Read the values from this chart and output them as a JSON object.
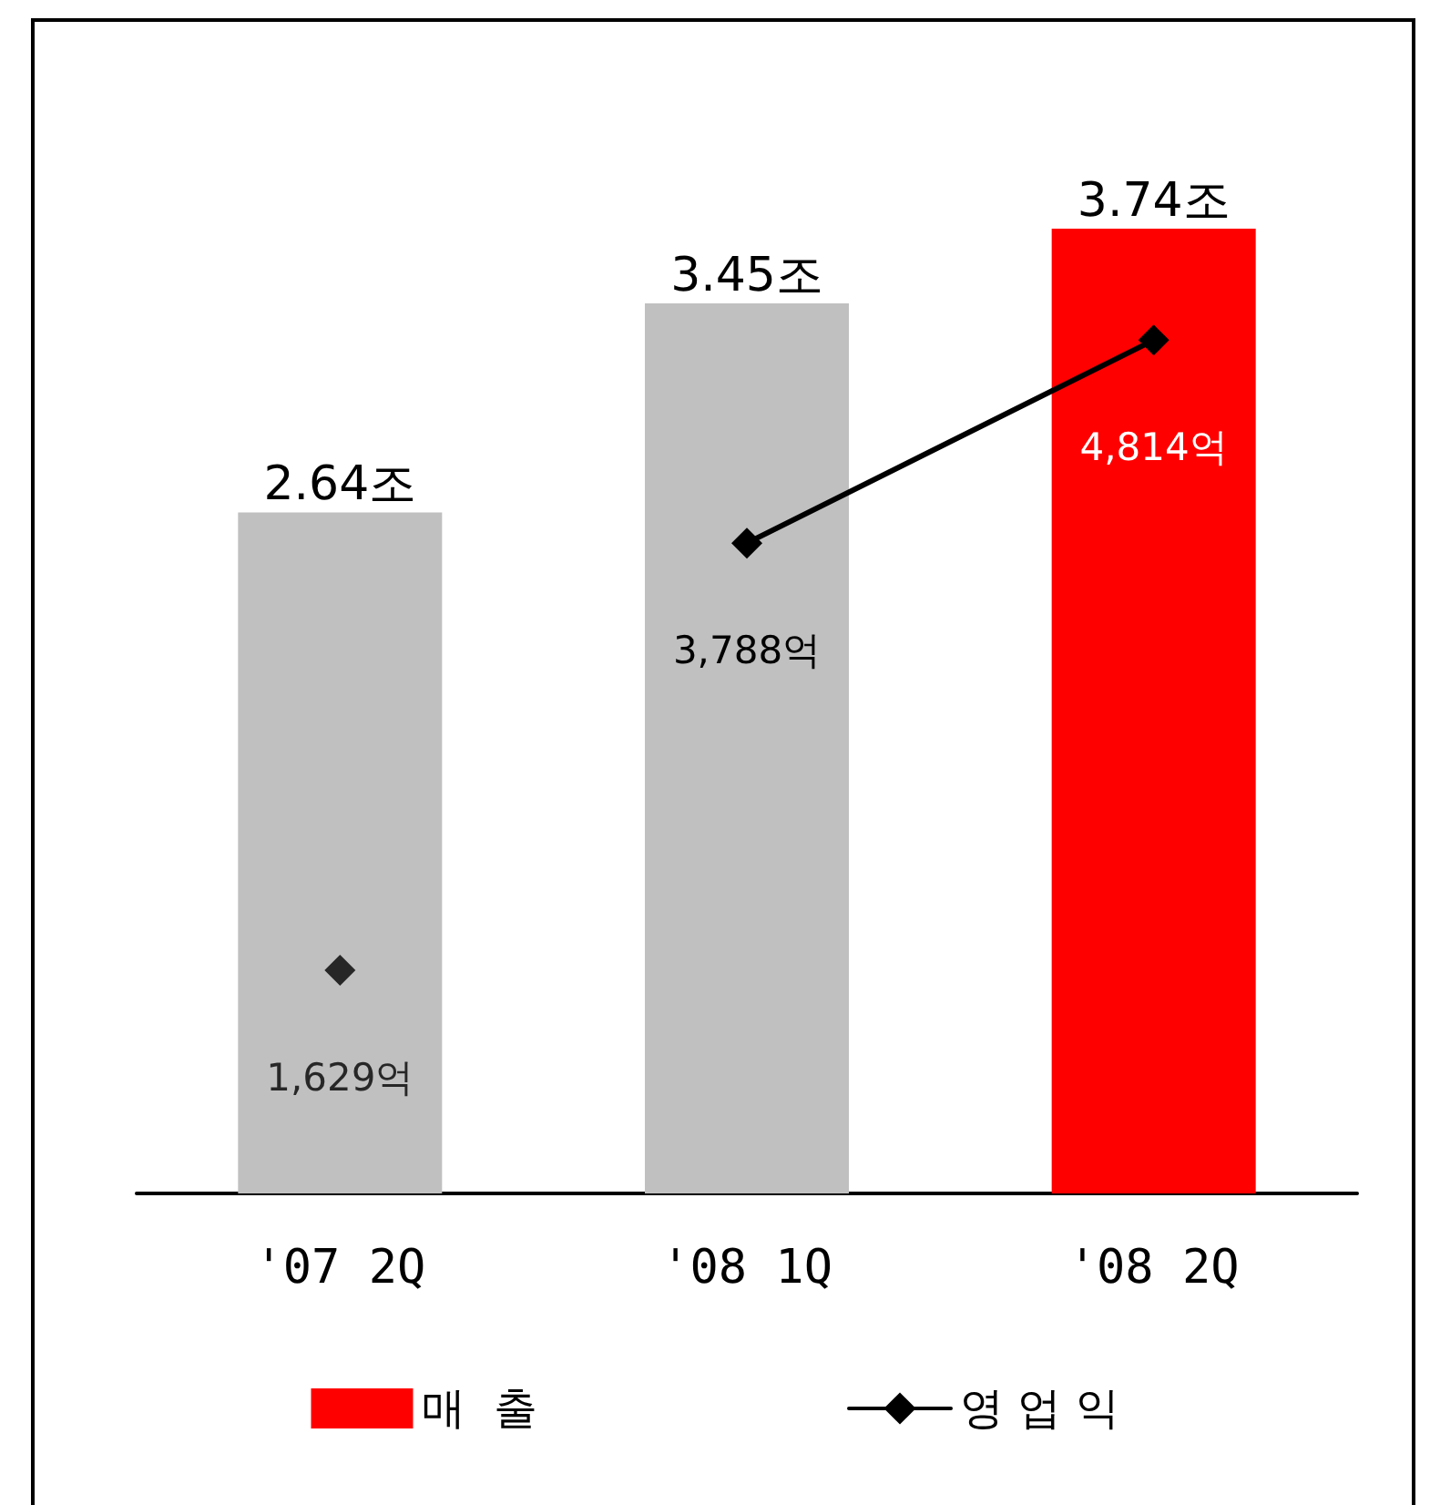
{
  "chart_data": {
    "type": "bar",
    "categories": [
      "'07 2Q",
      "'08 1Q",
      "'08 2Q"
    ],
    "series": [
      {
        "name": "매  출",
        "color": "#ff0000",
        "colors": [
          "#c0c0c0",
          "#c0c0c0",
          "#ff0000"
        ],
        "values": [
          2.64,
          3.45,
          3.74
        ],
        "value_labels": [
          "2.64조",
          "3.45조",
          "3.74조"
        ]
      },
      {
        "type": "line",
        "name": "영 업 익",
        "color": "#000000",
        "axis": "y2",
        "values": [
          null,
          3788,
          4814
        ],
        "value_labels": [
          null,
          "3,788억",
          "4,814억"
        ]
      },
      {
        "type": "scatter",
        "color": "#000000",
        "axis": "y2",
        "values": [
          1629,
          null,
          null
        ],
        "value_labels": [
          "1,629억",
          null,
          null
        ]
      }
    ],
    "tick_labels": "x",
    "marker": "diamond",
    "line_style": "solid",
    "legend": "bottom",
    "grid": false
  }
}
